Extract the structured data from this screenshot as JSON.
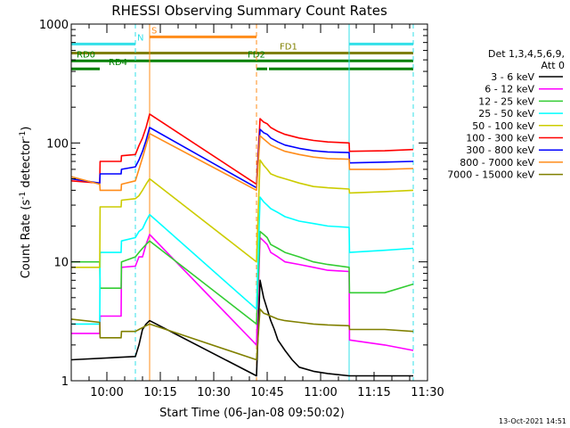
{
  "chart_data": {
    "type": "line",
    "title": "RHESSI Observing Summary Count Rates",
    "xlabel": "Start Time (06-Jan-08 09:50:02)",
    "ylabel": "Count Rate (s",
    "ylabel_sup1": "-1",
    "ylabel_mid": " detector",
    "ylabel_sup2": "-1",
    "ylabel_end": ")",
    "yscale": "log",
    "ylim": [
      1,
      1000
    ],
    "xlim_min": [
      0,
      100
    ],
    "y_tick_labels": [
      "1",
      "10",
      "100",
      "1000"
    ],
    "x_ticks": [
      {
        "label": "10:00",
        "min": 10
      },
      {
        "label": "10:15",
        "min": 25
      },
      {
        "label": "10:30",
        "min": 40
      },
      {
        "label": "10:45",
        "min": 55
      },
      {
        "label": "11:00",
        "min": 70
      },
      {
        "label": "11:15",
        "min": 85
      },
      {
        "label": "11:30",
        "min": 100
      }
    ],
    "legend_header": [
      "Det 1,3,4,5,6,9,",
      "Att 0"
    ],
    "legend_placement": "right",
    "footer_date": "13-Oct-2021 14:51",
    "flags": [
      {
        "label": "S",
        "color": "#ff8c1a",
        "y": 780,
        "segments": [
          [
            22,
            52
          ]
        ]
      },
      {
        "label": "N",
        "color": "#33e0e8",
        "y": 680,
        "segments": [
          [
            0,
            18
          ],
          [
            78,
            96
          ]
        ]
      },
      {
        "label": "FD1",
        "color": "#808000",
        "y": 570,
        "segments": [
          [
            0,
            96
          ]
        ]
      },
      {
        "label": "RD0",
        "color": "#008000",
        "y": 490,
        "segments": [
          [
            0,
            96
          ]
        ]
      },
      {
        "label": "FD2",
        "color": "#008000",
        "y": 490,
        "segments": []
      },
      {
        "label": "RD4",
        "color": "#008000",
        "y": 420,
        "segments": [
          [
            0,
            8
          ],
          [
            52,
            55
          ],
          [
            55.5,
            96
          ],
          [
            95.5,
            96
          ]
        ]
      }
    ],
    "vlines": [
      {
        "min": 18,
        "color": "#33e0e8",
        "style": "dashed"
      },
      {
        "min": 22,
        "color": "#ff8c1a",
        "style": "solid"
      },
      {
        "min": 52,
        "color": "#ff8c1a",
        "style": "dashed"
      },
      {
        "min": 78,
        "color": "#33e0e8",
        "style": "solid"
      },
      {
        "min": 96,
        "color": "#33e0e8",
        "style": "dashed"
      }
    ],
    "series": [
      {
        "name": "3 - 6 keV",
        "color": "#000000",
        "points": [
          [
            0,
            1.5
          ],
          [
            18,
            1.6
          ],
          [
            19,
            2
          ],
          [
            20,
            2.7
          ],
          [
            21,
            3
          ],
          [
            22,
            3.2
          ],
          [
            52,
            1.1
          ],
          [
            53,
            7
          ],
          [
            54,
            5
          ],
          [
            55,
            4
          ],
          [
            56,
            3.2
          ],
          [
            57,
            2.7
          ],
          [
            58,
            2.2
          ],
          [
            60,
            1.8
          ],
          [
            62,
            1.5
          ],
          [
            64,
            1.3
          ],
          [
            68,
            1.2
          ],
          [
            72,
            1.15
          ],
          [
            78,
            1.1
          ],
          [
            96,
            1.1
          ]
        ]
      },
      {
        "name": "6 - 12 keV",
        "color": "#ff00ff",
        "points": [
          [
            0,
            2.5
          ],
          [
            8,
            2.5
          ],
          [
            8.1,
            3.5
          ],
          [
            14,
            3.5
          ],
          [
            14.1,
            9
          ],
          [
            18,
            9.2
          ],
          [
            19,
            11
          ],
          [
            20,
            11
          ],
          [
            21,
            14
          ],
          [
            22,
            17
          ],
          [
            52,
            2
          ],
          [
            53,
            16
          ],
          [
            54,
            15
          ],
          [
            55,
            14
          ],
          [
            56,
            12
          ],
          [
            58,
            11
          ],
          [
            60,
            10
          ],
          [
            64,
            9.5
          ],
          [
            68,
            9
          ],
          [
            72,
            8.5
          ],
          [
            78,
            8.3
          ],
          [
            78.1,
            2.2
          ],
          [
            88,
            2
          ],
          [
            96,
            1.8
          ]
        ]
      },
      {
        "name": "12 - 25 keV",
        "color": "#33cc33",
        "points": [
          [
            0,
            10
          ],
          [
            8,
            10
          ],
          [
            8.1,
            6
          ],
          [
            14,
            6
          ],
          [
            14.1,
            10
          ],
          [
            18,
            11
          ],
          [
            19,
            12
          ],
          [
            20,
            13
          ],
          [
            21,
            14
          ],
          [
            22,
            15
          ],
          [
            52,
            3
          ],
          [
            53,
            18
          ],
          [
            54,
            17
          ],
          [
            55,
            16
          ],
          [
            56,
            14
          ],
          [
            58,
            13
          ],
          [
            60,
            12
          ],
          [
            64,
            11
          ],
          [
            68,
            10
          ],
          [
            72,
            9.5
          ],
          [
            78,
            9
          ],
          [
            78.1,
            5.5
          ],
          [
            88,
            5.5
          ],
          [
            96,
            6.5
          ]
        ]
      },
      {
        "name": "25 - 50 keV",
        "color": "#00ffff",
        "points": [
          [
            0,
            3
          ],
          [
            8,
            3
          ],
          [
            8.1,
            12
          ],
          [
            14,
            12
          ],
          [
            14.1,
            15
          ],
          [
            18,
            16
          ],
          [
            19,
            18
          ],
          [
            20,
            19
          ],
          [
            21,
            22
          ],
          [
            22,
            25
          ],
          [
            52,
            4
          ],
          [
            53,
            35
          ],
          [
            54,
            32
          ],
          [
            55,
            30
          ],
          [
            56,
            28
          ],
          [
            58,
            26
          ],
          [
            60,
            24
          ],
          [
            64,
            22
          ],
          [
            68,
            21
          ],
          [
            72,
            20
          ],
          [
            78,
            19.5
          ],
          [
            78.1,
            12
          ],
          [
            88,
            12.5
          ],
          [
            96,
            13
          ]
        ]
      },
      {
        "name": "50 - 100 keV",
        "color": "#cccc00",
        "points": [
          [
            0,
            9
          ],
          [
            8,
            9
          ],
          [
            8.1,
            29
          ],
          [
            14,
            29
          ],
          [
            14.1,
            33
          ],
          [
            18,
            34
          ],
          [
            19,
            36
          ],
          [
            20,
            40
          ],
          [
            21,
            45
          ],
          [
            22,
            50
          ],
          [
            52,
            10
          ],
          [
            53,
            72
          ],
          [
            54,
            65
          ],
          [
            55,
            60
          ],
          [
            56,
            55
          ],
          [
            58,
            52
          ],
          [
            60,
            50
          ],
          [
            64,
            46
          ],
          [
            68,
            43
          ],
          [
            72,
            42
          ],
          [
            78,
            41
          ],
          [
            78.1,
            38
          ],
          [
            88,
            39
          ],
          [
            96,
            40
          ]
        ]
      },
      {
        "name": "100 - 300 keV",
        "color": "#ff0000",
        "points": [
          [
            0,
            48
          ],
          [
            8,
            46
          ],
          [
            8.1,
            70
          ],
          [
            14,
            70
          ],
          [
            14.1,
            78
          ],
          [
            18,
            80
          ],
          [
            19,
            95
          ],
          [
            20,
            110
          ],
          [
            21,
            135
          ],
          [
            22,
            175
          ],
          [
            52,
            45
          ],
          [
            53,
            160
          ],
          [
            54,
            150
          ],
          [
            55,
            145
          ],
          [
            56,
            135
          ],
          [
            58,
            125
          ],
          [
            60,
            118
          ],
          [
            64,
            110
          ],
          [
            68,
            105
          ],
          [
            72,
            102
          ],
          [
            78,
            100
          ],
          [
            78.1,
            85
          ],
          [
            88,
            86
          ],
          [
            96,
            88
          ]
        ]
      },
      {
        "name": "300 - 800 keV",
        "color": "#0000ff",
        "points": [
          [
            0,
            50
          ],
          [
            8,
            46
          ],
          [
            8.1,
            55
          ],
          [
            14,
            55
          ],
          [
            14.1,
            60
          ],
          [
            18,
            63
          ],
          [
            19,
            72
          ],
          [
            20,
            85
          ],
          [
            21,
            105
          ],
          [
            22,
            135
          ],
          [
            52,
            42
          ],
          [
            53,
            130
          ],
          [
            54,
            122
          ],
          [
            55,
            118
          ],
          [
            56,
            110
          ],
          [
            58,
            102
          ],
          [
            60,
            96
          ],
          [
            64,
            90
          ],
          [
            68,
            86
          ],
          [
            72,
            84
          ],
          [
            78,
            83
          ],
          [
            78.1,
            68
          ],
          [
            88,
            69
          ],
          [
            96,
            70
          ]
        ]
      },
      {
        "name": "800 - 7000 keV",
        "color": "#ff8c1a",
        "points": [
          [
            0,
            52
          ],
          [
            8,
            45
          ],
          [
            8.1,
            40
          ],
          [
            14,
            40
          ],
          [
            14.1,
            45
          ],
          [
            18,
            48
          ],
          [
            19,
            60
          ],
          [
            20,
            75
          ],
          [
            21,
            95
          ],
          [
            22,
            120
          ],
          [
            52,
            40
          ],
          [
            53,
            115
          ],
          [
            54,
            108
          ],
          [
            55,
            102
          ],
          [
            56,
            96
          ],
          [
            58,
            90
          ],
          [
            60,
            85
          ],
          [
            64,
            80
          ],
          [
            68,
            76
          ],
          [
            72,
            74
          ],
          [
            78,
            73
          ],
          [
            78.1,
            60
          ],
          [
            88,
            60
          ],
          [
            96,
            61
          ]
        ]
      },
      {
        "name": "7000 - 15000 keV",
        "color": "#808000",
        "points": [
          [
            0,
            3.3
          ],
          [
            8,
            3.1
          ],
          [
            8.1,
            2.3
          ],
          [
            14,
            2.3
          ],
          [
            14.1,
            2.6
          ],
          [
            18,
            2.6
          ],
          [
            19,
            2.7
          ],
          [
            20,
            2.8
          ],
          [
            21,
            2.9
          ],
          [
            22,
            3
          ],
          [
            52,
            1.5
          ],
          [
            53,
            4
          ],
          [
            54,
            3.7
          ],
          [
            55,
            3.6
          ],
          [
            56,
            3.5
          ],
          [
            58,
            3.3
          ],
          [
            60,
            3.2
          ],
          [
            64,
            3.1
          ],
          [
            68,
            3
          ],
          [
            72,
            2.95
          ],
          [
            78,
            2.9
          ],
          [
            78.1,
            2.7
          ],
          [
            88,
            2.7
          ],
          [
            96,
            2.6
          ]
        ]
      }
    ]
  }
}
